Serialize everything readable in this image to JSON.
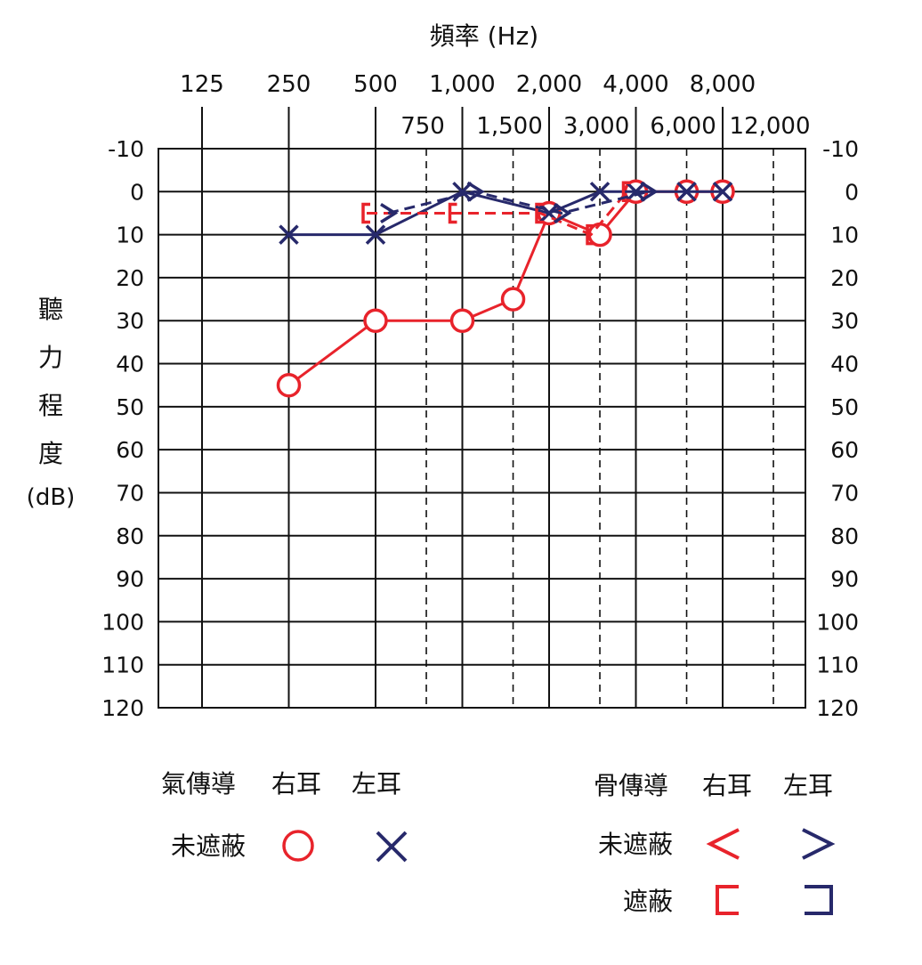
{
  "chart_data": {
    "type": "scatter",
    "title": "頻率 (Hz)",
    "ylabel_chars": [
      "聽",
      "力",
      "程",
      "度"
    ],
    "ylabel_unit": "(dB)",
    "x_main": [
      "125",
      "250",
      "500",
      "1,000",
      "2,000",
      "4,000",
      "8,000"
    ],
    "x_half": [
      "750",
      "1,500",
      "3,000",
      "6,000",
      "12,000"
    ],
    "y_ticks": [
      "-10",
      "0",
      "10",
      "20",
      "30",
      "40",
      "50",
      "60",
      "70",
      "80",
      "90",
      "100",
      "110",
      "120"
    ],
    "ylim": [
      -10,
      120
    ],
    "y_reversed": true,
    "grid": true,
    "colors": {
      "right": "#e8232b",
      "left": "#27296b",
      "grid": "#111111"
    },
    "series": [
      {
        "key": "air_right",
        "marker": "circle",
        "color": "right",
        "line": "solid",
        "points": [
          [
            250,
            45
          ],
          [
            500,
            30
          ],
          [
            1000,
            30
          ],
          [
            1500,
            25
          ],
          [
            2000,
            5
          ],
          [
            3000,
            10
          ],
          [
            4000,
            0
          ],
          [
            6000,
            0
          ],
          [
            8000,
            0
          ]
        ]
      },
      {
        "key": "air_left",
        "marker": "cross",
        "color": "left",
        "line": "solid",
        "points": [
          [
            250,
            10
          ],
          [
            500,
            10
          ],
          [
            1000,
            0
          ],
          [
            2000,
            5
          ],
          [
            3000,
            0
          ],
          [
            4000,
            0
          ],
          [
            6000,
            0
          ],
          [
            8000,
            0
          ]
        ]
      },
      {
        "key": "bone_masked_right",
        "marker": "bracket-right",
        "color": "right",
        "line": "dashed",
        "points": [
          [
            500,
            5
          ],
          [
            1000,
            5
          ],
          [
            2000,
            5
          ],
          [
            3000,
            10
          ],
          [
            4000,
            0
          ]
        ]
      },
      {
        "key": "bone_unmasked_left",
        "marker": "chevron-left",
        "color": "left",
        "line": "dashed",
        "points": [
          [
            500,
            5
          ],
          [
            1000,
            0
          ],
          [
            2000,
            5
          ],
          [
            4000,
            0
          ]
        ]
      }
    ]
  },
  "legend": {
    "air_title": "氣傳導",
    "bone_title": "骨傳導",
    "right_ear": "右耳",
    "left_ear": "左耳",
    "unmasked": "未遮蔽",
    "masked": "遮蔽"
  }
}
